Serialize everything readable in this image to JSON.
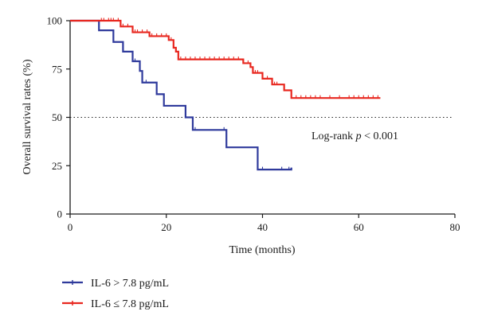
{
  "chart_data": {
    "type": "line",
    "subtype": "kaplan-meier",
    "xlabel": "Time (months)",
    "ylabel": "Overall survival rates (%)",
    "xlim": [
      0,
      80
    ],
    "ylim": [
      0,
      100
    ],
    "xticks": [
      0,
      20,
      40,
      60,
      80
    ],
    "yticks": [
      0,
      25,
      50,
      75,
      100
    ],
    "reference_line": {
      "y": 50,
      "style": "dotted"
    },
    "annotation": {
      "prefix": "Log-rank ",
      "italic": "p",
      "suffix": " < 0.001"
    },
    "legend_position": "bottom-left",
    "series": [
      {
        "name": "IL-6 > 7.8 pg/mL",
        "color": "#2f3a9c",
        "steps": [
          [
            0,
            100
          ],
          [
            6,
            100
          ],
          [
            6,
            95
          ],
          [
            9,
            95
          ],
          [
            9,
            89
          ],
          [
            11,
            89
          ],
          [
            11,
            84
          ],
          [
            13,
            84
          ],
          [
            13,
            79
          ],
          [
            14.5,
            79
          ],
          [
            14.5,
            74
          ],
          [
            15,
            74
          ],
          [
            15,
            68
          ],
          [
            18,
            68
          ],
          [
            18,
            62
          ],
          [
            19.5,
            62
          ],
          [
            19.5,
            56
          ],
          [
            24,
            56
          ],
          [
            24,
            50
          ],
          [
            25.5,
            50
          ],
          [
            25.5,
            43.5
          ],
          [
            32.5,
            43.5
          ],
          [
            32.5,
            34.5
          ],
          [
            39,
            34.5
          ],
          [
            39,
            23
          ],
          [
            46,
            23
          ],
          [
            46,
            24
          ]
        ],
        "censor_times": [
          13.5,
          15.8,
          26,
          32,
          40,
          44,
          45.5
        ]
      },
      {
        "name": "IL-6 ≤ 7.8 pg/mL",
        "color": "#e8271f",
        "steps": [
          [
            0,
            100
          ],
          [
            10.5,
            100
          ],
          [
            10.5,
            97
          ],
          [
            13,
            97
          ],
          [
            13,
            94
          ],
          [
            16.5,
            94
          ],
          [
            16.5,
            92
          ],
          [
            20.5,
            92
          ],
          [
            20.5,
            90
          ],
          [
            21.5,
            90
          ],
          [
            21.5,
            86
          ],
          [
            22,
            86
          ],
          [
            22,
            84
          ],
          [
            22.5,
            84
          ],
          [
            22.5,
            80
          ],
          [
            36,
            80
          ],
          [
            36,
            78
          ],
          [
            37.5,
            78
          ],
          [
            37.5,
            76
          ],
          [
            38,
            76
          ],
          [
            38,
            73
          ],
          [
            40,
            73
          ],
          [
            40,
            70
          ],
          [
            42,
            70
          ],
          [
            42,
            67
          ],
          [
            44.5,
            67
          ],
          [
            44.5,
            64
          ],
          [
            46,
            64
          ],
          [
            46,
            60
          ],
          [
            64.5,
            60
          ]
        ],
        "censor_times": [
          6.5,
          7,
          8,
          8.5,
          9,
          10,
          11,
          12,
          13.5,
          14,
          15,
          16,
          17,
          18,
          19,
          20,
          20.5,
          21,
          23,
          24,
          25,
          26,
          27,
          28,
          29,
          30,
          31,
          32,
          33,
          34,
          35,
          37,
          38.5,
          39,
          41,
          42.5,
          43,
          47,
          48,
          49,
          50,
          51,
          52,
          54,
          56,
          58,
          59,
          60,
          61,
          62,
          63,
          64
        ]
      }
    ]
  }
}
